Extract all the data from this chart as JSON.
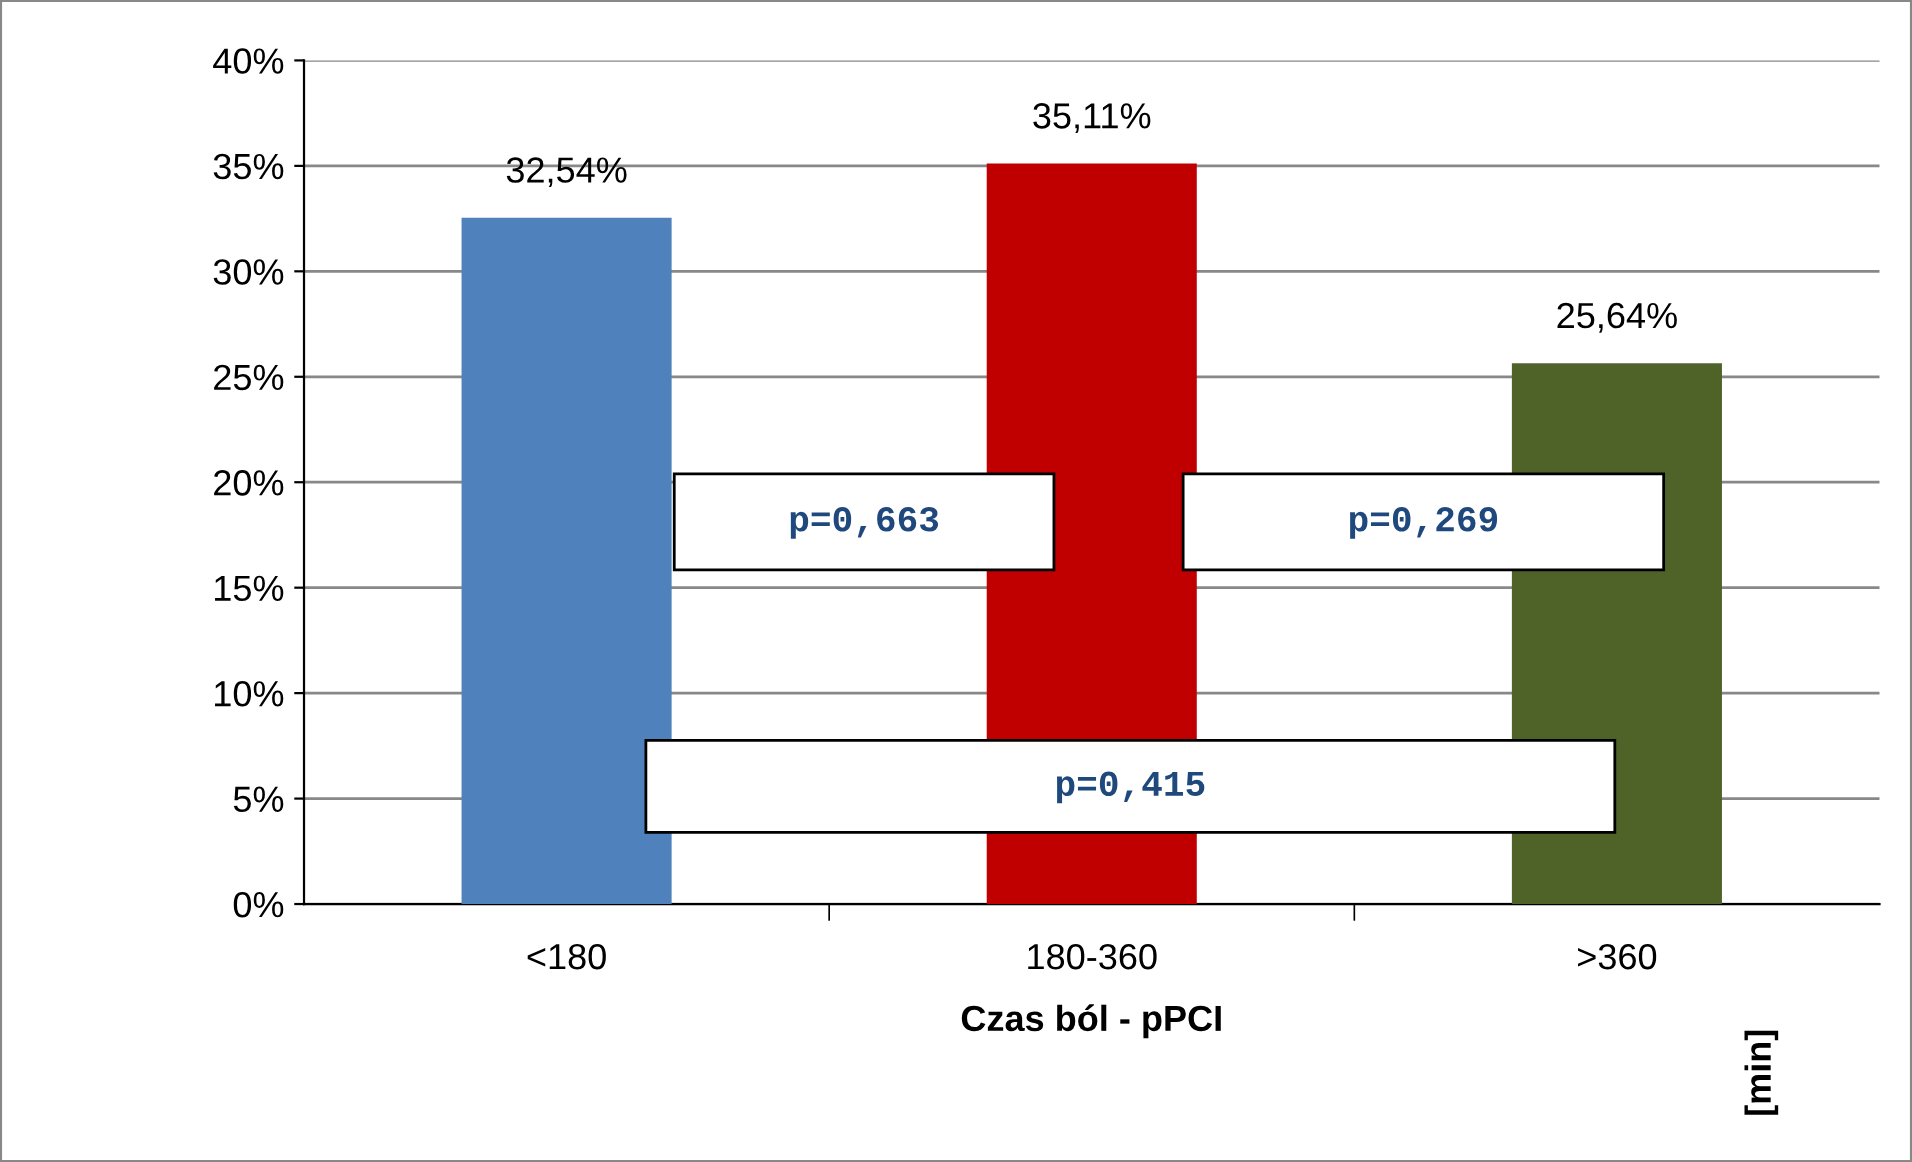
{
  "chart_data": {
    "type": "bar",
    "categories": [
      "<180",
      "180-360",
      ">360"
    ],
    "values": [
      32.54,
      35.11,
      25.64
    ],
    "colors": [
      "#4f81bd",
      "#c00000",
      "#4f6228"
    ],
    "value_labels": [
      "32,54%",
      "35,11%",
      "25,64%"
    ],
    "xlabel": "Czas ból - pPCI",
    "ylim": [
      0,
      40
    ],
    "yticks": [
      {
        "value": 0,
        "label": "0%"
      },
      {
        "value": 5,
        "label": "5%"
      },
      {
        "value": 10,
        "label": "10%"
      },
      {
        "value": 15,
        "label": "15%"
      },
      {
        "value": 20,
        "label": "20%"
      },
      {
        "value": 25,
        "label": "25%"
      },
      {
        "value": 30,
        "label": "30%"
      },
      {
        "value": 35,
        "label": "35%"
      },
      {
        "value": 40,
        "label": "40%"
      }
    ],
    "grid": "y",
    "annotations": [
      "p=0,663",
      "p=0,269",
      "p=0,415",
      "[min]"
    ]
  }
}
